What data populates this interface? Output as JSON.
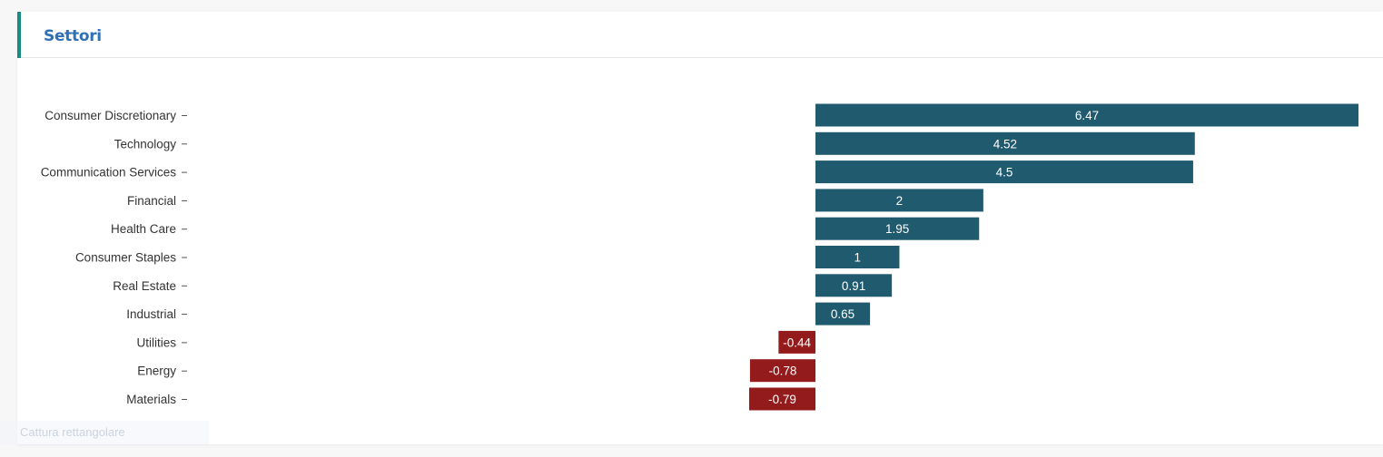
{
  "panel": {
    "title": "Settori"
  },
  "colors": {
    "accent": "#1a8a85",
    "title": "#2f6fb5",
    "positive": "#1f5a6e",
    "negative": "#941b1b"
  },
  "overlay": {
    "text": "Cattura rettangolare"
  },
  "chart_data": {
    "type": "bar",
    "orientation": "horizontal",
    "categories": [
      "Consumer Discretionary",
      "Technology",
      "Communication Services",
      "Financial",
      "Health Care",
      "Consumer Staples",
      "Real Estate",
      "Industrial",
      "Utilities",
      "Energy",
      "Materials"
    ],
    "values": [
      6.47,
      4.52,
      4.5,
      2,
      1.95,
      1,
      0.91,
      0.65,
      -0.44,
      -0.78,
      -0.79
    ],
    "title": "",
    "xlabel": "",
    "ylabel": "",
    "xlim": [
      -0.79,
      6.47
    ],
    "grid": false,
    "legend": "none"
  }
}
